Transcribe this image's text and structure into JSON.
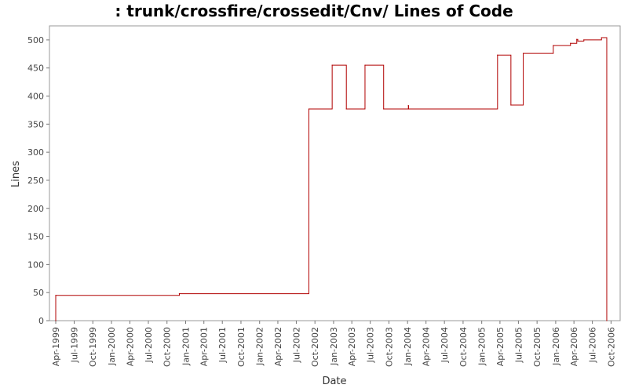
{
  "chart_data": {
    "type": "line",
    "title": ": trunk/crossfire/crossedit/Cnv/ Lines of Code",
    "xlabel": "Date",
    "ylabel": "Lines",
    "ylim": [
      0,
      525
    ],
    "xlim": [
      "1999-03-01",
      "2006-11-15"
    ],
    "y_ticks": [
      0,
      50,
      100,
      150,
      200,
      250,
      300,
      350,
      400,
      450,
      500
    ],
    "x_ticks": [
      {
        "date": "1999-04-01",
        "label": "Apr-1999"
      },
      {
        "date": "1999-07-01",
        "label": "Jul-1999"
      },
      {
        "date": "1999-10-01",
        "label": "Oct-1999"
      },
      {
        "date": "2000-01-01",
        "label": "Jan-2000"
      },
      {
        "date": "2000-04-01",
        "label": "Apr-2000"
      },
      {
        "date": "2000-07-01",
        "label": "Jul-2000"
      },
      {
        "date": "2000-10-01",
        "label": "Oct-2000"
      },
      {
        "date": "2001-01-01",
        "label": "Jan-2001"
      },
      {
        "date": "2001-04-01",
        "label": "Apr-2001"
      },
      {
        "date": "2001-07-01",
        "label": "Jul-2001"
      },
      {
        "date": "2001-10-01",
        "label": "Oct-2001"
      },
      {
        "date": "2002-01-01",
        "label": "Jan-2002"
      },
      {
        "date": "2002-04-01",
        "label": "Apr-2002"
      },
      {
        "date": "2002-07-01",
        "label": "Jul-2002"
      },
      {
        "date": "2002-10-01",
        "label": "Oct-2002"
      },
      {
        "date": "2003-01-01",
        "label": "Jan-2003"
      },
      {
        "date": "2003-04-01",
        "label": "Apr-2003"
      },
      {
        "date": "2003-07-01",
        "label": "Jul-2003"
      },
      {
        "date": "2003-10-01",
        "label": "Oct-2003"
      },
      {
        "date": "2004-01-01",
        "label": "Jan-2004"
      },
      {
        "date": "2004-04-01",
        "label": "Apr-2004"
      },
      {
        "date": "2004-07-01",
        "label": "Jul-2004"
      },
      {
        "date": "2004-10-01",
        "label": "Oct-2004"
      },
      {
        "date": "2005-01-01",
        "label": "Jan-2005"
      },
      {
        "date": "2005-04-01",
        "label": "Apr-2005"
      },
      {
        "date": "2005-07-01",
        "label": "Jul-2005"
      },
      {
        "date": "2005-10-01",
        "label": "Oct-2005"
      },
      {
        "date": "2006-01-01",
        "label": "Jan-2006"
      },
      {
        "date": "2006-04-01",
        "label": "Apr-2006"
      },
      {
        "date": "2006-07-01",
        "label": "Jul-2006"
      },
      {
        "date": "2006-10-01",
        "label": "Oct-2006"
      }
    ],
    "grid": false,
    "legend": "none",
    "series": [
      {
        "color": "#b00000",
        "step": true,
        "points": [
          {
            "x": "1999-04-01",
            "y": 0
          },
          {
            "x": "1999-04-01",
            "y": 45
          },
          {
            "x": "2000-12-01",
            "y": 48
          },
          {
            "x": "2002-09-01",
            "y": 377
          },
          {
            "x": "2002-12-25",
            "y": 455
          },
          {
            "x": "2003-03-05",
            "y": 377
          },
          {
            "x": "2003-06-05",
            "y": 455
          },
          {
            "x": "2003-09-05",
            "y": 377
          },
          {
            "x": "2004-01-05",
            "y": 383
          },
          {
            "x": "2004-01-06",
            "y": 377
          },
          {
            "x": "2005-03-20",
            "y": 473
          },
          {
            "x": "2005-05-25",
            "y": 384
          },
          {
            "x": "2005-07-25",
            "y": 476
          },
          {
            "x": "2005-12-20",
            "y": 490
          },
          {
            "x": "2006-03-15",
            "y": 494
          },
          {
            "x": "2006-04-15",
            "y": 501
          },
          {
            "x": "2006-04-20",
            "y": 498
          },
          {
            "x": "2006-05-20",
            "y": 500
          },
          {
            "x": "2006-08-15",
            "y": 504
          },
          {
            "x": "2006-09-10",
            "y": 0
          }
        ]
      }
    ]
  }
}
